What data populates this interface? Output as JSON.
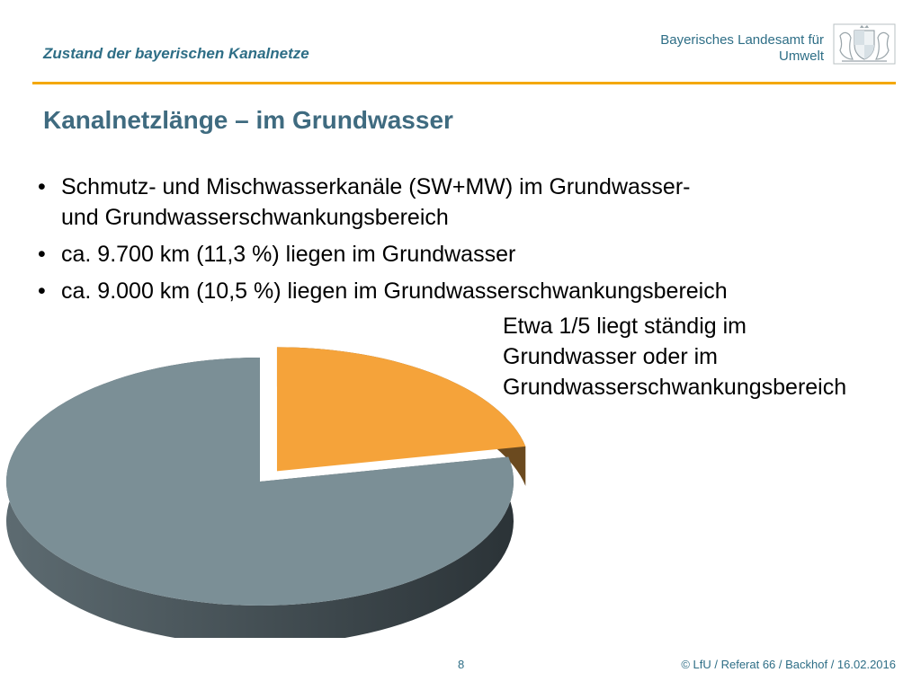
{
  "header": {
    "title": "Zustand der bayerischen Kanalnetze",
    "org_line1": "Bayerisches Landesamt für",
    "org_line2": "Umwelt",
    "logo_icon": "coat-of-arms-icon"
  },
  "slide": {
    "title": "Kanalnetzlänge – im Grundwasser",
    "bullets": [
      "Schmutz- und Mischwasserkanäle (SW+MW) im Grundwasser- und Grundwasserschwankungsbereich",
      "ca. 9.700 km (11,3 %) liegen im Grundwasser",
      "ca. 9.000 km (10,5 %) liegen im Grundwasserschwankungsbereich"
    ],
    "arrow_symbol": "",
    "conclusion": "Etwa 1/5 liegt ständig im\nGrundwasser oder im\nGrundwasserschwankungsbereich"
  },
  "chart_data": {
    "type": "pie",
    "style": "3d-exploded",
    "title": "",
    "slices": [
      {
        "value": 21.8,
        "color": "#f5a33a",
        "side_color": "#6b4a1f",
        "exploded": true
      },
      {
        "value": 78.2,
        "color": "#7b8f96",
        "side_color": "#3d474d",
        "exploded": false
      }
    ],
    "legend": "none"
  },
  "footer": {
    "page_number": "8",
    "credit": "© LfU / Referat 66 / Backhof / 16.02.2016"
  },
  "colors": {
    "accent_rule": "#f4a800",
    "heading": "#3f6b80",
    "header_text": "#2e6e86"
  }
}
